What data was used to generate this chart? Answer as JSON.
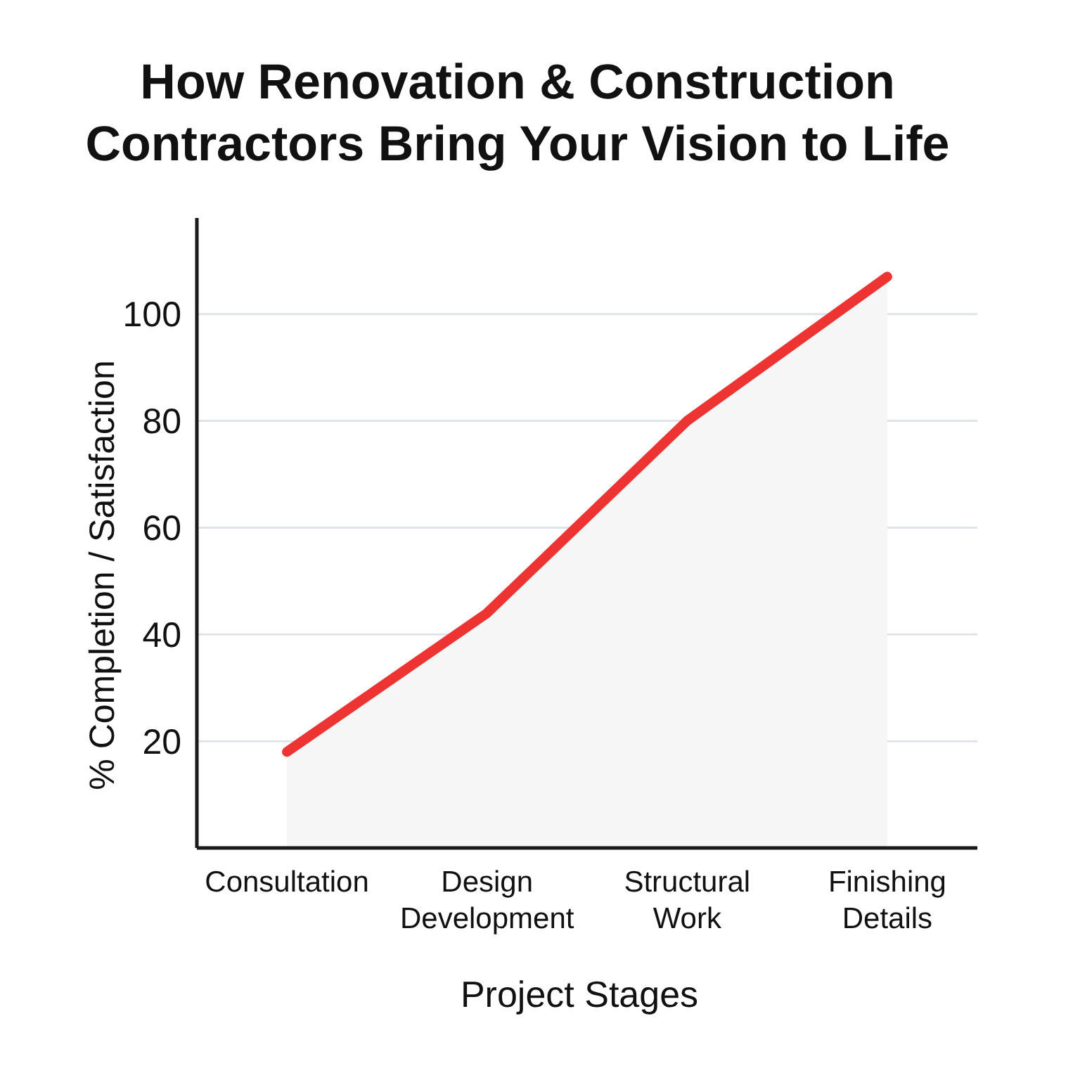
{
  "chart_data": {
    "type": "area",
    "title": "How Renovation & Construction Contractors Bring Your Vision to Life",
    "xlabel": "Project Stages",
    "ylabel": "% Completion / Satisfaction",
    "categories": [
      "Consultation",
      "Design Development",
      "Structural Work",
      "Finishing Details"
    ],
    "series": [
      {
        "color": "#ee3333",
        "values": [
          18,
          44,
          80,
          107
        ]
      }
    ],
    "ylim": [
      0,
      118
    ],
    "yticks": [
      20,
      40,
      60,
      80,
      100
    ],
    "grid": "y"
  }
}
